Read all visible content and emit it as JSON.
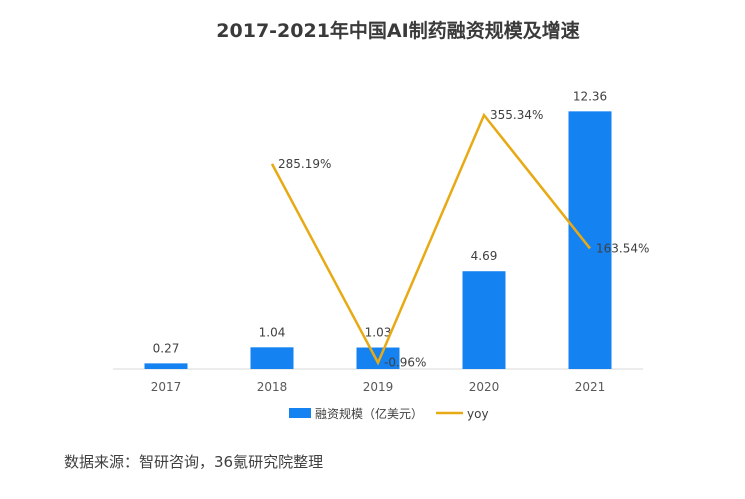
{
  "chart_data": {
    "type": "bar",
    "title": "2017-2021年中国AI制药融资规模及增速",
    "categories": [
      "2017",
      "2018",
      "2019",
      "2020",
      "2021"
    ],
    "series": [
      {
        "name": "融资规模（亿美元）",
        "kind": "bar",
        "color": "#1482F0",
        "values": [
          0.27,
          1.04,
          1.03,
          4.69,
          12.36
        ],
        "labels": [
          "0.27",
          "1.04",
          "1.03",
          "4.69",
          "12.36"
        ]
      },
      {
        "name": "yoy",
        "kind": "line",
        "axis": "secondary",
        "color": "#E8AA14",
        "values": [
          null,
          285.19,
          -0.96,
          355.34,
          163.54
        ],
        "labels": [
          "",
          "285.19%",
          "-0.96%",
          "355.34%",
          "163.54%"
        ]
      }
    ],
    "ylim": [
      0,
      13
    ],
    "y2lim": [
      -10,
      380
    ],
    "grid": false,
    "legend": "bottom"
  },
  "source": "数据来源：智研咨询，36氪研究院整理"
}
